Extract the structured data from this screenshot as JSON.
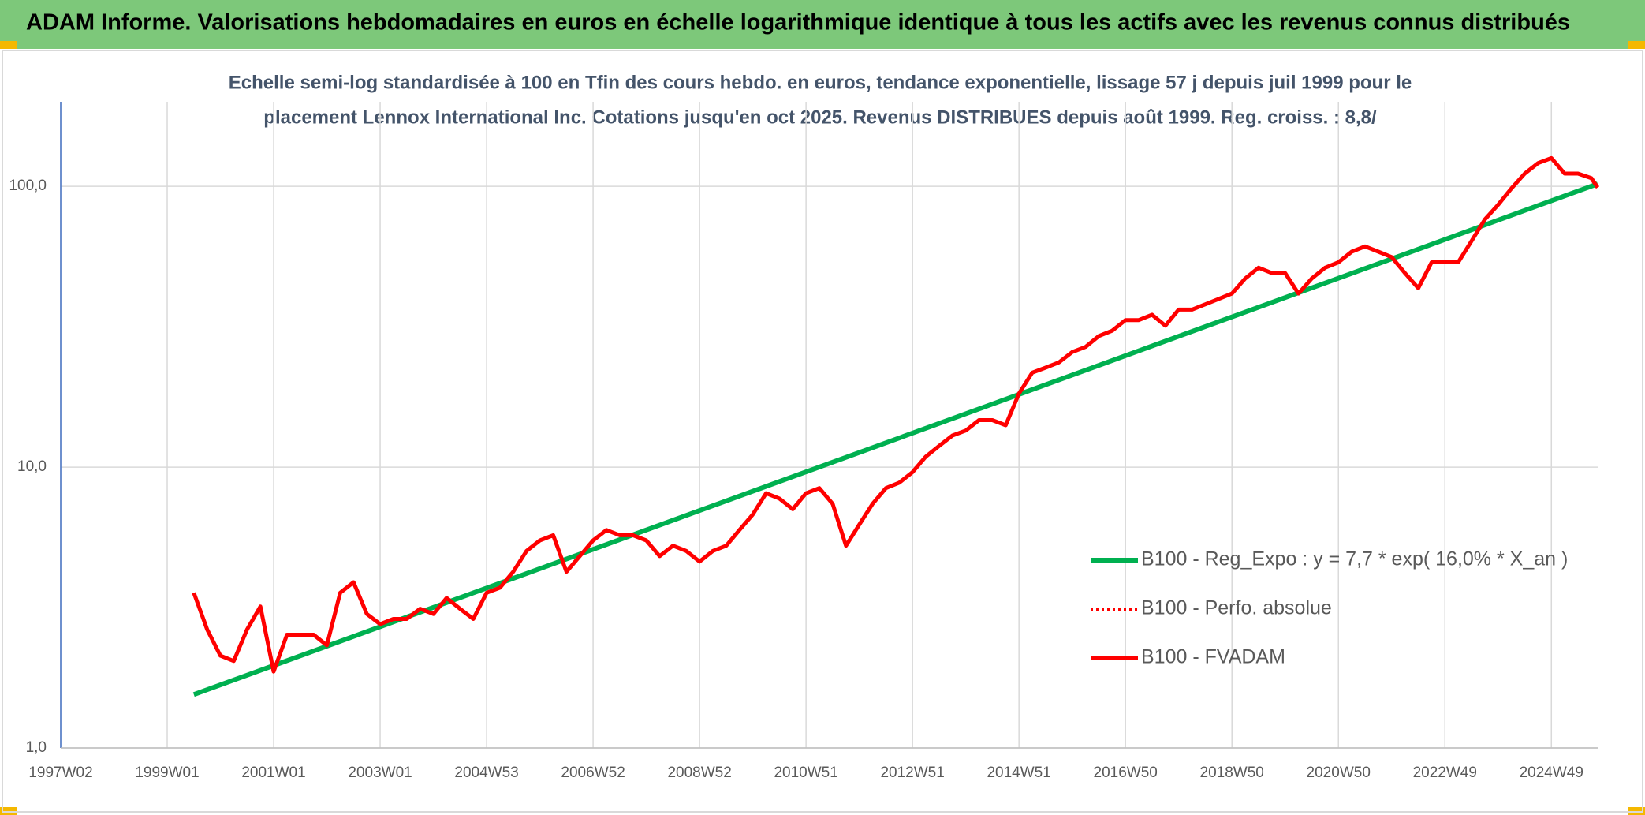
{
  "chart_data": {
    "type": "line",
    "title": "ADAM Informe. Valorisations hebdomadaires en euros en échelle logarithmique identique à tous les actifs avec les revenus connus distribués",
    "subtitle": [
      "Echelle semi-log standardisée à 100 en Tfin des cours hebdo. en euros, tendance exponentielle, lissage 57 j depuis juil 1999 pour le",
      "placement Lennox International Inc. Cotations jusqu'en oct 2025. Revenus DISTRIBUES depuis août 1999. Reg. croiss. : 8,8/"
    ],
    "ylog": true,
    "grid": true,
    "legend_position": "right",
    "xlim": [
      1997,
      2025.87
    ],
    "xticks": [
      {
        "value": 1997,
        "label": "1997W02"
      },
      {
        "value": 1999,
        "label": "1999W01"
      },
      {
        "value": 2001,
        "label": "2001W01"
      },
      {
        "value": 2003,
        "label": "2003W01"
      },
      {
        "value": 2005,
        "label": "2004W53"
      },
      {
        "value": 2007,
        "label": "2006W52"
      },
      {
        "value": 2009,
        "label": "2008W52"
      },
      {
        "value": 2011,
        "label": "2010W51"
      },
      {
        "value": 2013,
        "label": "2012W51"
      },
      {
        "value": 2015,
        "label": "2014W51"
      },
      {
        "value": 2017,
        "label": "2016W50"
      },
      {
        "value": 2019,
        "label": "2018W50"
      },
      {
        "value": 2021,
        "label": "2020W50"
      },
      {
        "value": 2023,
        "label": "2022W49"
      },
      {
        "value": 2025,
        "label": "2024W49"
      }
    ],
    "ylim": [
      1,
      200
    ],
    "yticks": [
      {
        "value": 1,
        "label": "1,0"
      },
      {
        "value": 10,
        "label": "10,0"
      },
      {
        "value": 100,
        "label": "100,0"
      }
    ],
    "series": [
      {
        "name": "B100 - Reg_Expo : y = 7,7 * exp( 16,0% *  X_an )",
        "color": "#00b050",
        "style": "solid",
        "width": 6,
        "x": [
          1999.5,
          2025.87
        ],
        "values": [
          1.55,
          102
        ]
      },
      {
        "name": "B100 - Perfo. absolue",
        "color": "#ff0000",
        "style": "dotted",
        "width": 4,
        "x": [],
        "values": []
      },
      {
        "name": "B100 - FVADAM",
        "color": "#ff0000",
        "style": "solid",
        "width": 5,
        "x": [
          1999.5,
          1999.75,
          2000,
          2000.25,
          2000.5,
          2000.75,
          2001,
          2001.25,
          2001.5,
          2001.75,
          2002,
          2002.25,
          2002.5,
          2002.75,
          2003,
          2003.25,
          2003.5,
          2003.75,
          2004,
          2004.25,
          2004.5,
          2004.75,
          2005,
          2005.25,
          2005.5,
          2005.75,
          2006,
          2006.25,
          2006.5,
          2006.75,
          2007,
          2007.25,
          2007.5,
          2007.75,
          2008,
          2008.25,
          2008.5,
          2008.75,
          2009,
          2009.25,
          2009.5,
          2009.75,
          2010,
          2010.25,
          2010.5,
          2010.75,
          2011,
          2011.25,
          2011.5,
          2011.75,
          2012,
          2012.25,
          2012.5,
          2012.75,
          2013,
          2013.25,
          2013.5,
          2013.75,
          2014,
          2014.25,
          2014.5,
          2014.75,
          2015,
          2015.25,
          2015.5,
          2015.75,
          2016,
          2016.25,
          2016.5,
          2016.75,
          2017,
          2017.25,
          2017.5,
          2017.75,
          2018,
          2018.25,
          2018.5,
          2018.75,
          2019,
          2019.25,
          2019.5,
          2019.75,
          2020,
          2020.25,
          2020.5,
          2020.75,
          2021,
          2021.25,
          2021.5,
          2021.75,
          2022,
          2022.25,
          2022.5,
          2022.75,
          2023,
          2023.25,
          2023.5,
          2023.75,
          2024,
          2024.25,
          2024.5,
          2024.75,
          2025,
          2025.25,
          2025.5,
          2025.75,
          2025.87
        ],
        "values": [
          3.57,
          2.64,
          2.13,
          2.04,
          2.64,
          3.19,
          1.87,
          2.53,
          2.53,
          2.53,
          2.32,
          3.57,
          3.89,
          3.0,
          2.76,
          2.88,
          2.88,
          3.13,
          3.0,
          3.42,
          3.13,
          2.88,
          3.57,
          3.72,
          4.24,
          5.03,
          5.48,
          5.72,
          4.24,
          4.82,
          5.48,
          5.97,
          5.72,
          5.72,
          5.48,
          4.82,
          5.25,
          5.03,
          4.61,
          5.03,
          5.25,
          5.97,
          6.78,
          8.07,
          7.73,
          7.08,
          8.07,
          8.42,
          7.4,
          5.25,
          6.24,
          7.4,
          8.42,
          8.8,
          9.6,
          10.9,
          11.9,
          12.96,
          13.5,
          14.7,
          14.7,
          14.1,
          18.3,
          21.7,
          22.6,
          23.6,
          25.7,
          26.8,
          29.3,
          30.6,
          33.4,
          33.4,
          34.9,
          31.9,
          36.4,
          36.4,
          38.0,
          39.7,
          41.5,
          47.0,
          51.3,
          49.1,
          49.1,
          41.5,
          47.0,
          51.3,
          53.6,
          58.5,
          61.1,
          58.5,
          56.0,
          49.1,
          43.4,
          53.6,
          53.6,
          53.6,
          63.8,
          76.2,
          86.0,
          98.3,
          111,
          121,
          126,
          111,
          111,
          107,
          99
        ]
      }
    ]
  }
}
